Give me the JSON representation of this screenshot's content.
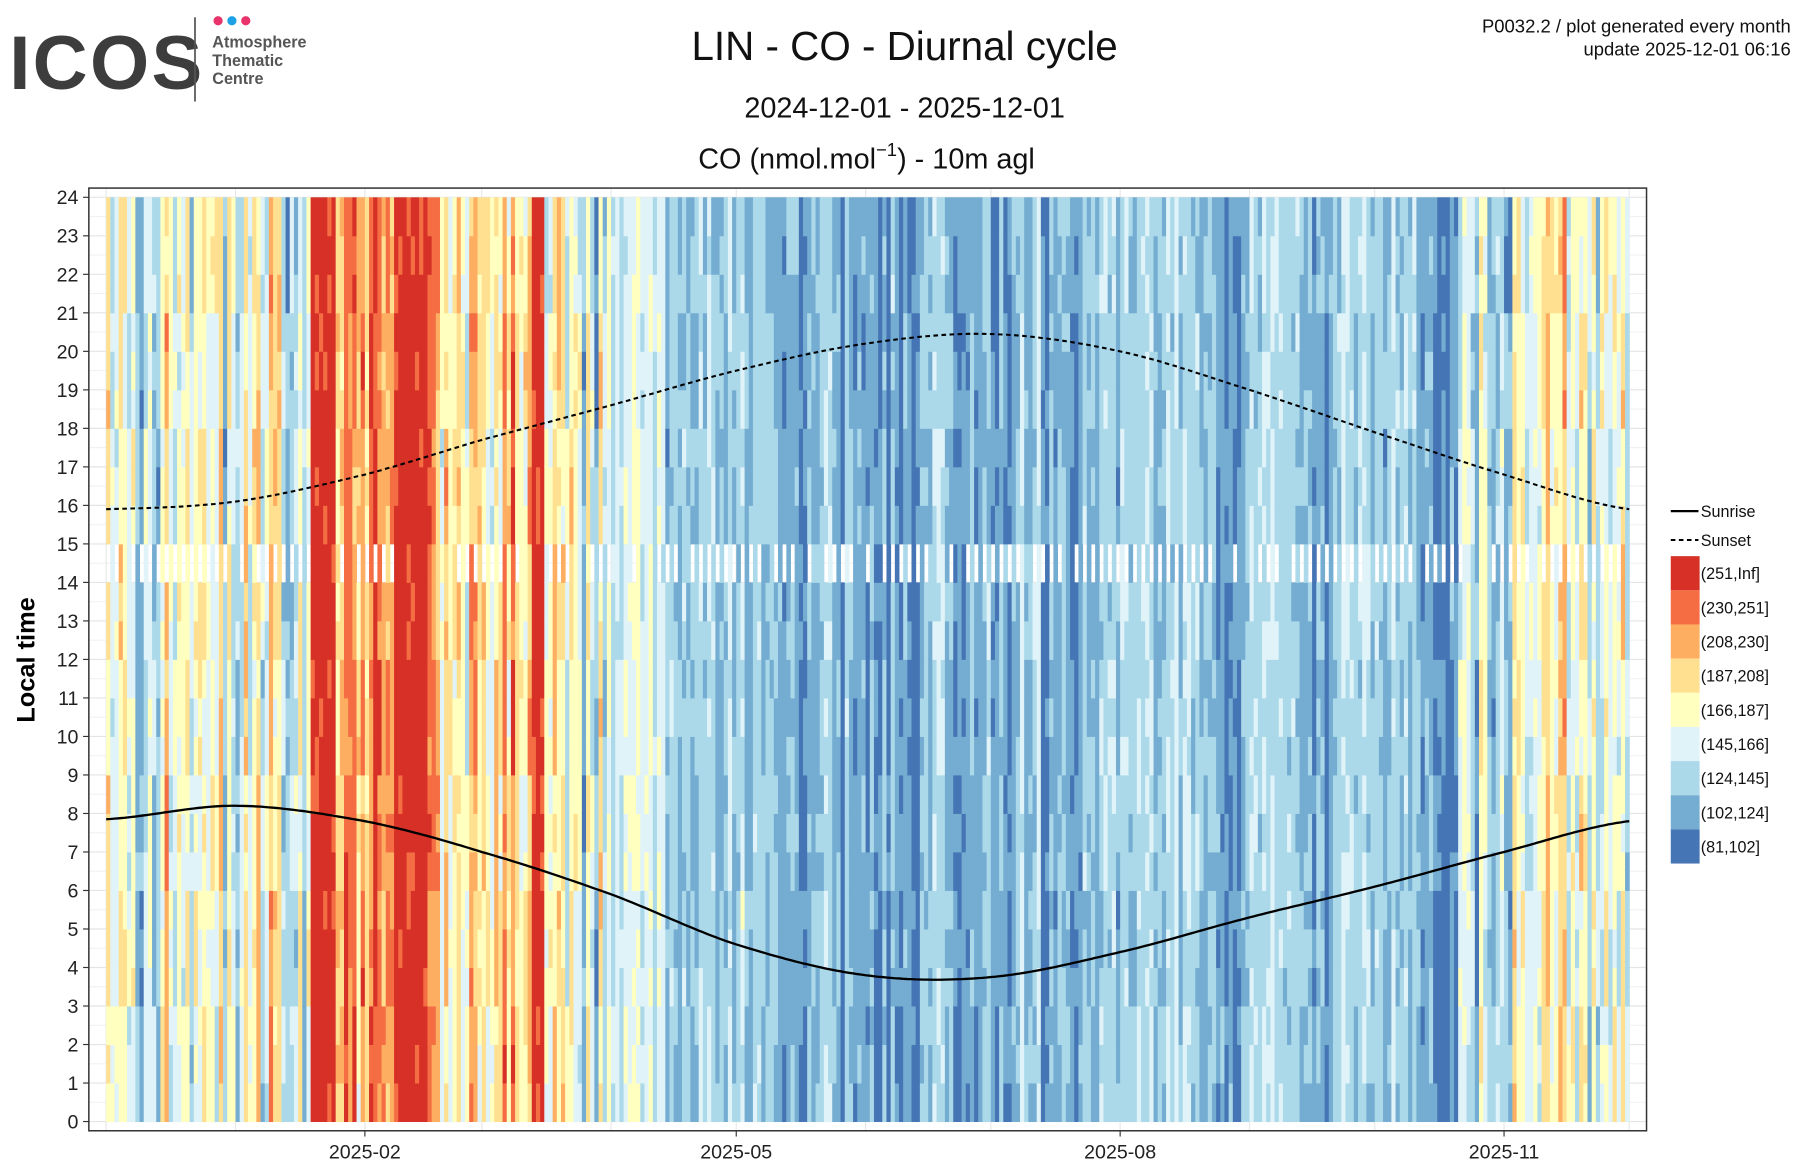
{
  "header": {
    "logo_text": "ICOS",
    "logo_sub": [
      "Atmosphere",
      "Thematic",
      "Centre"
    ],
    "info_line1": "P0032.2 / plot generated every month",
    "info_line2": "update  2025-12-01 06:16"
  },
  "chart_data": {
    "type": "heatmap",
    "title": "LIN - CO - Diurnal cycle",
    "subtitle": "2024-12-01 - 2025-12-01",
    "variable_prefix": "CO (nmol.mol",
    "variable_exp": "−1",
    "variable_suffix": ") - 10m agl",
    "xlabel": "",
    "ylabel": "Local time",
    "x_range": [
      "2024-12-01",
      "2025-12-01"
    ],
    "x_ticks": [
      {
        "label": "2025-02",
        "day": 62
      },
      {
        "label": "2025-05",
        "day": 151
      },
      {
        "label": "2025-08",
        "day": 243
      },
      {
        "label": "2025-11",
        "day": 335
      }
    ],
    "ylim": [
      0,
      24
    ],
    "y_ticks": [
      "0",
      "1",
      "2",
      "3",
      "4",
      "5",
      "6",
      "7",
      "8",
      "9",
      "10",
      "11",
      "12",
      "13",
      "14",
      "15",
      "16",
      "17",
      "18",
      "19",
      "20",
      "21",
      "22",
      "23",
      "24"
    ],
    "grid": true,
    "legend_position": "right",
    "legend_lines": [
      {
        "label": "Sunrise",
        "style": "solid"
      },
      {
        "label": "Sunset",
        "style": "dashed"
      }
    ],
    "bins": [
      {
        "label": "(251,Inf]",
        "color": "#d73027"
      },
      {
        "label": "(230,251]",
        "color": "#f46d43"
      },
      {
        "label": "(208,230]",
        "color": "#fdae61"
      },
      {
        "label": "(187,208]",
        "color": "#fee090"
      },
      {
        "label": "(166,187]",
        "color": "#ffffbf"
      },
      {
        "label": "(145,166]",
        "color": "#e0f3f8"
      },
      {
        "label": "(124,145]",
        "color": "#abd9e9"
      },
      {
        "label": "(102,124]",
        "color": "#74add1"
      },
      {
        "label": "(81,102]",
        "color": "#4575b4"
      }
    ],
    "weekly_typical_bin_index_low_to_high": [
      4,
      3,
      4,
      4,
      3,
      4,
      3,
      5,
      6,
      6,
      4,
      5,
      4,
      5,
      4,
      4,
      3,
      3,
      3,
      2,
      2,
      2,
      2,
      1,
      2,
      1,
      1,
      1,
      2,
      1,
      1,
      2,
      1,
      1,
      2,
      2,
      2,
      2,
      1,
      2,
      2,
      1,
      2,
      2,
      2,
      1,
      2,
      3,
      3,
      4,
      3,
      4,
      4
    ],
    "high_episodes": [
      [
        "2025-01-19",
        "2025-01-24"
      ],
      [
        "2025-02-08",
        "2025-02-15"
      ],
      [
        "2025-03-13",
        "2025-03-15"
      ]
    ],
    "frequently_missing_hours": [
      14
    ],
    "sunrise_monthly": {
      "dates": [
        "2024-12-01",
        "2025-01-01",
        "2025-02-01",
        "2025-03-01",
        "2025-04-01",
        "2025-05-01",
        "2025-06-01",
        "2025-07-01",
        "2025-08-01",
        "2025-09-01",
        "2025-10-01",
        "2025-11-01",
        "2025-12-01"
      ],
      "days": [
        0,
        31,
        62,
        90,
        121,
        151,
        182,
        212,
        243,
        274,
        304,
        335,
        365
      ],
      "hours": [
        7.85,
        8.2,
        7.8,
        7.0,
        5.9,
        4.6,
        3.8,
        3.75,
        4.4,
        5.3,
        6.1,
        7.0,
        7.8
      ]
    },
    "sunset_monthly": {
      "days": [
        0,
        31,
        62,
        90,
        121,
        151,
        182,
        212,
        243,
        274,
        304,
        335,
        365
      ],
      "hours": [
        15.9,
        16.1,
        16.8,
        17.7,
        18.6,
        19.5,
        20.2,
        20.45,
        20.0,
        19.0,
        17.9,
        16.8,
        15.9
      ]
    }
  }
}
